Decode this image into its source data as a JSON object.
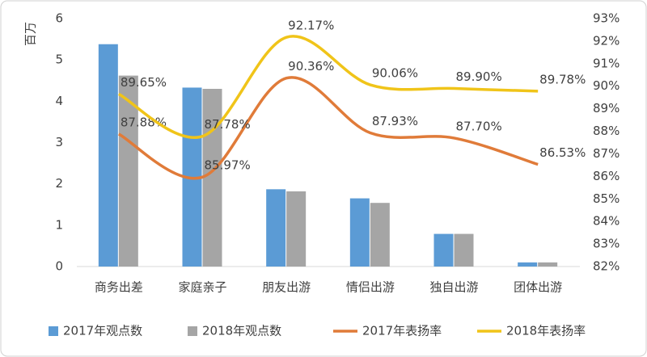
{
  "chart_data": {
    "type": "bar-line",
    "y_label": "百万",
    "categories": [
      "商务出差",
      "家庭亲子",
      "朋友出游",
      "情侣出游",
      "独自出游",
      "团体出游"
    ],
    "ylim": [
      0,
      6
    ],
    "yticks": [
      0,
      1,
      2,
      3,
      4,
      5,
      6
    ],
    "y2lim": [
      82,
      93
    ],
    "y2ticks": [
      {
        "value": 82,
        "label": "82%"
      },
      {
        "value": 83,
        "label": "83%"
      },
      {
        "value": 84,
        "label": "84%"
      },
      {
        "value": 85,
        "label": "85%"
      },
      {
        "value": 86,
        "label": "86%"
      },
      {
        "value": 87,
        "label": "87%"
      },
      {
        "value": 88,
        "label": "88%"
      },
      {
        "value": 89,
        "label": "89%"
      },
      {
        "value": 90,
        "label": "90%"
      },
      {
        "value": 91,
        "label": "91%"
      },
      {
        "value": 92,
        "label": "92%"
      },
      {
        "value": 93,
        "label": "93%"
      }
    ],
    "legend": "bottom",
    "series": [
      {
        "name": "2017年观点数",
        "type": "bar",
        "color": "#5b9bd5",
        "values": [
          5.38,
          4.33,
          1.87,
          1.65,
          0.79,
          0.1
        ]
      },
      {
        "name": "2018年观点数",
        "type": "bar",
        "color": "#a5a5a5",
        "values": [
          4.62,
          4.3,
          1.82,
          1.54,
          0.79,
          0.1
        ]
      },
      {
        "name": "2017年表扬率",
        "type": "line",
        "axis": "y2",
        "color": "#e07b39",
        "values": [
          87.88,
          85.97,
          90.36,
          87.93,
          87.7,
          86.53
        ],
        "value_labels": [
          "87.88%",
          "85.97%",
          "90.36%",
          "87.93%",
          "87.70%",
          "86.53%"
        ]
      },
      {
        "name": "2018年表扬率",
        "type": "line",
        "axis": "y2",
        "color": "#f0c419",
        "values": [
          89.65,
          87.78,
          92.17,
          90.06,
          89.9,
          89.78
        ],
        "value_labels": [
          "89.65%",
          "87.78%",
          "92.17%",
          "90.06%",
          "89.90%",
          "89.78%"
        ]
      }
    ]
  }
}
